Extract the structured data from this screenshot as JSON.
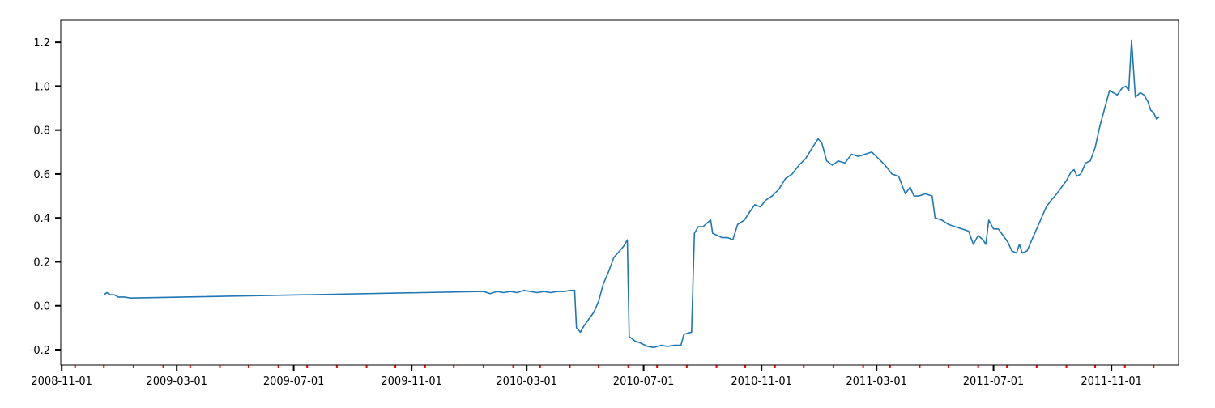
{
  "colors": {
    "series": "#1f77b4",
    "axes": "#000000",
    "minor_tick": "#ff0000",
    "background": "#ffffff"
  },
  "chart_data": {
    "type": "line",
    "title": "",
    "xlabel": "",
    "ylabel": "",
    "grid": false,
    "legend": "none",
    "xlim": [
      "2008-10-31",
      "2012-01-10"
    ],
    "ylim": [
      -0.27,
      1.3
    ],
    "x_tick_labels": [
      "2008-11-01",
      "2009-03-01",
      "2009-07-01",
      "2009-11-01",
      "2010-03-01",
      "2010-07-01",
      "2010-11-01",
      "2011-03-01",
      "2011-07-01",
      "2011-11-01"
    ],
    "y_tick_labels": [
      "-0.2",
      "0.0",
      "0.2",
      "0.4",
      "0.6",
      "0.8",
      "1.0",
      "1.2"
    ],
    "minor_ticks": "monthly",
    "series": [
      {
        "points": [
          [
            "2008-12-15",
            0.05
          ],
          [
            "2008-12-18",
            0.06
          ],
          [
            "2008-12-22",
            0.05
          ],
          [
            "2008-12-26",
            0.05
          ],
          [
            "2008-12-30",
            0.04
          ],
          [
            "2009-01-05",
            0.04
          ],
          [
            "2009-01-12",
            0.035
          ],
          [
            "2010-01-15",
            0.065
          ],
          [
            "2010-01-22",
            0.055
          ],
          [
            "2010-01-29",
            0.065
          ],
          [
            "2010-02-05",
            0.06
          ],
          [
            "2010-02-12",
            0.065
          ],
          [
            "2010-02-19",
            0.06
          ],
          [
            "2010-02-26",
            0.07
          ],
          [
            "2010-03-05",
            0.065
          ],
          [
            "2010-03-12",
            0.06
          ],
          [
            "2010-03-19",
            0.065
          ],
          [
            "2010-03-26",
            0.06
          ],
          [
            "2010-04-02",
            0.065
          ],
          [
            "2010-04-09",
            0.065
          ],
          [
            "2010-04-16",
            0.07
          ],
          [
            "2010-04-20",
            0.07
          ],
          [
            "2010-04-22",
            -0.1
          ],
          [
            "2010-04-26",
            -0.12
          ],
          [
            "2010-04-30",
            -0.09
          ],
          [
            "2010-05-05",
            -0.06
          ],
          [
            "2010-05-10",
            -0.03
          ],
          [
            "2010-05-15",
            0.02
          ],
          [
            "2010-05-20",
            0.1
          ],
          [
            "2010-05-25",
            0.15
          ],
          [
            "2010-05-31",
            0.22
          ],
          [
            "2010-06-06",
            0.25
          ],
          [
            "2010-06-10",
            0.27
          ],
          [
            "2010-06-14",
            0.3
          ],
          [
            "2010-06-16",
            -0.14
          ],
          [
            "2010-06-22",
            -0.16
          ],
          [
            "2010-06-28",
            -0.17
          ],
          [
            "2010-07-05",
            -0.185
          ],
          [
            "2010-07-12",
            -0.19
          ],
          [
            "2010-07-19",
            -0.18
          ],
          [
            "2010-07-26",
            -0.185
          ],
          [
            "2010-08-02",
            -0.18
          ],
          [
            "2010-08-09",
            -0.18
          ],
          [
            "2010-08-12",
            -0.13
          ],
          [
            "2010-08-16",
            -0.125
          ],
          [
            "2010-08-20",
            -0.12
          ],
          [
            "2010-08-23",
            0.33
          ],
          [
            "2010-08-27",
            0.36
          ],
          [
            "2010-09-01",
            0.36
          ],
          [
            "2010-09-06",
            0.38
          ],
          [
            "2010-09-09",
            0.39
          ],
          [
            "2010-09-11",
            0.33
          ],
          [
            "2010-09-16",
            0.32
          ],
          [
            "2010-09-21",
            0.31
          ],
          [
            "2010-09-27",
            0.31
          ],
          [
            "2010-10-02",
            0.3
          ],
          [
            "2010-10-07",
            0.37
          ],
          [
            "2010-10-14",
            0.39
          ],
          [
            "2010-10-20",
            0.43
          ],
          [
            "2010-10-25",
            0.46
          ],
          [
            "2010-10-31",
            0.45
          ],
          [
            "2010-11-05",
            0.48
          ],
          [
            "2010-11-12",
            0.5
          ],
          [
            "2010-11-19",
            0.53
          ],
          [
            "2010-11-26",
            0.58
          ],
          [
            "2010-12-03",
            0.6
          ],
          [
            "2010-12-10",
            0.64
          ],
          [
            "2010-12-17",
            0.67
          ],
          [
            "2010-12-24",
            0.72
          ],
          [
            "2010-12-30",
            0.76
          ],
          [
            "2011-01-03",
            0.74
          ],
          [
            "2011-01-08",
            0.66
          ],
          [
            "2011-01-14",
            0.64
          ],
          [
            "2011-01-20",
            0.66
          ],
          [
            "2011-01-27",
            0.65
          ],
          [
            "2011-02-03",
            0.69
          ],
          [
            "2011-02-10",
            0.68
          ],
          [
            "2011-02-17",
            0.69
          ],
          [
            "2011-02-24",
            0.7
          ],
          [
            "2011-03-03",
            0.67
          ],
          [
            "2011-03-10",
            0.64
          ],
          [
            "2011-03-17",
            0.6
          ],
          [
            "2011-03-24",
            0.59
          ],
          [
            "2011-03-31",
            0.51
          ],
          [
            "2011-04-05",
            0.54
          ],
          [
            "2011-04-09",
            0.5
          ],
          [
            "2011-04-14",
            0.5
          ],
          [
            "2011-04-21",
            0.51
          ],
          [
            "2011-04-28",
            0.5
          ],
          [
            "2011-05-01",
            0.4
          ],
          [
            "2011-05-08",
            0.39
          ],
          [
            "2011-05-15",
            0.37
          ],
          [
            "2011-05-22",
            0.36
          ],
          [
            "2011-05-29",
            0.35
          ],
          [
            "2011-06-05",
            0.34
          ],
          [
            "2011-06-10",
            0.28
          ],
          [
            "2011-06-15",
            0.32
          ],
          [
            "2011-06-20",
            0.3
          ],
          [
            "2011-06-23",
            0.28
          ],
          [
            "2011-06-26",
            0.39
          ],
          [
            "2011-07-01",
            0.35
          ],
          [
            "2011-07-06",
            0.35
          ],
          [
            "2011-07-11",
            0.32
          ],
          [
            "2011-07-16",
            0.29
          ],
          [
            "2011-07-20",
            0.25
          ],
          [
            "2011-07-25",
            0.24
          ],
          [
            "2011-07-28",
            0.28
          ],
          [
            "2011-07-31",
            0.24
          ],
          [
            "2011-08-05",
            0.25
          ],
          [
            "2011-08-10",
            0.3
          ],
          [
            "2011-08-15",
            0.35
          ],
          [
            "2011-08-20",
            0.4
          ],
          [
            "2011-08-25",
            0.45
          ],
          [
            "2011-08-30",
            0.48
          ],
          [
            "2011-09-05",
            0.51
          ],
          [
            "2011-09-10",
            0.54
          ],
          [
            "2011-09-15",
            0.57
          ],
          [
            "2011-09-20",
            0.61
          ],
          [
            "2011-09-23",
            0.62
          ],
          [
            "2011-09-26",
            0.59
          ],
          [
            "2011-09-30",
            0.6
          ],
          [
            "2011-10-05",
            0.65
          ],
          [
            "2011-10-10",
            0.66
          ],
          [
            "2011-10-15",
            0.72
          ],
          [
            "2011-10-20",
            0.82
          ],
          [
            "2011-10-25",
            0.9
          ],
          [
            "2011-10-30",
            0.98
          ],
          [
            "2011-11-03",
            0.97
          ],
          [
            "2011-11-07",
            0.96
          ],
          [
            "2011-11-12",
            0.99
          ],
          [
            "2011-11-16",
            1.0
          ],
          [
            "2011-11-19",
            0.98
          ],
          [
            "2011-11-22",
            1.21
          ],
          [
            "2011-11-26",
            0.95
          ],
          [
            "2011-12-01",
            0.97
          ],
          [
            "2011-12-05",
            0.96
          ],
          [
            "2011-12-09",
            0.93
          ],
          [
            "2011-12-12",
            0.89
          ],
          [
            "2011-12-15",
            0.88
          ],
          [
            "2011-12-18",
            0.85
          ],
          [
            "2011-12-21",
            0.86
          ]
        ]
      }
    ]
  }
}
